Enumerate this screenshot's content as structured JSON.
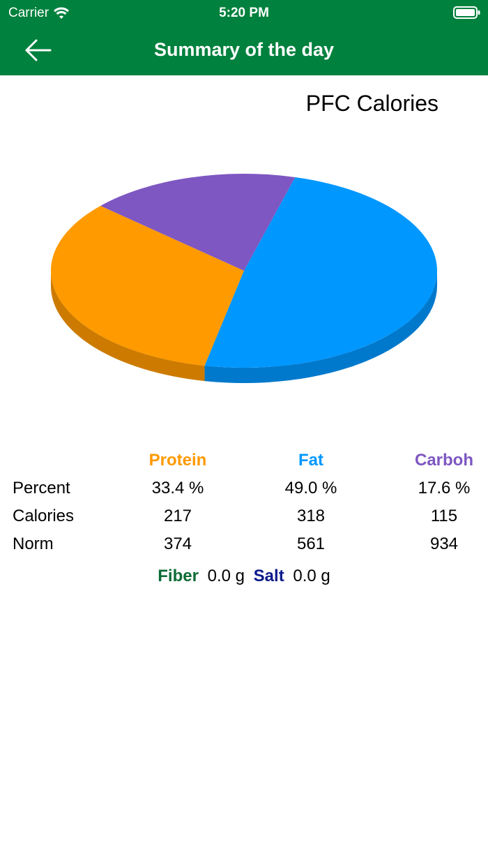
{
  "status": {
    "carrier": "Carrier",
    "time": "5:20 PM"
  },
  "nav": {
    "title": "Summary of the day"
  },
  "colors": {
    "header_bg": "#00813d",
    "protein": "#ff9a00",
    "fat": "#0097ff",
    "carb": "#7e57c2",
    "fiber": "#0d6b35",
    "salt": "#0a1a8a"
  },
  "chart_data": {
    "type": "pie",
    "title": "PFC Calories",
    "slices": [
      {
        "name": "Protein",
        "value": 33.4,
        "color": "#ff9a00"
      },
      {
        "name": "Fat",
        "value": 49.0,
        "color": "#0097ff"
      },
      {
        "name": "Carboh",
        "value": 17.6,
        "color": "#7e57c2"
      }
    ]
  },
  "table": {
    "headers": [
      "Protein",
      "Fat",
      "Carboh"
    ],
    "rows": [
      {
        "label": "Percent",
        "values": [
          "33.4 %",
          "49.0 %",
          "17.6 %"
        ]
      },
      {
        "label": "Calories",
        "values": [
          "217",
          "318",
          "115"
        ]
      },
      {
        "label": "Norm",
        "values": [
          "374",
          "561",
          "934"
        ]
      }
    ]
  },
  "extras": {
    "fiber_label": "Fiber",
    "fiber_value": "0.0 g",
    "salt_label": "Salt",
    "salt_value": "0.0 g"
  }
}
